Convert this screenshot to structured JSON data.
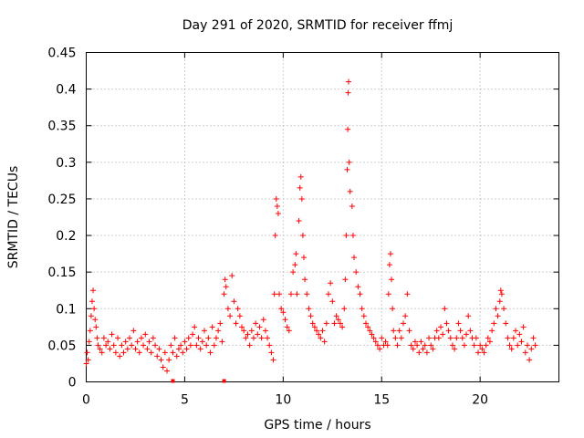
{
  "chart_data": {
    "type": "scatter",
    "title": "Day 291 of 2020, SRMTID for receiver ffmj",
    "xlabel": "GPS time / hours",
    "ylabel": "SRMTID / TECUs",
    "xlim": [
      0,
      24
    ],
    "ylim": [
      0,
      0.45
    ],
    "xticks": [
      0,
      5,
      10,
      15,
      20
    ],
    "xtick_labels": [
      "0",
      "5",
      "10",
      "15",
      "20"
    ],
    "yticks": [
      0,
      0.05,
      0.1,
      0.15,
      0.2,
      0.25,
      0.3,
      0.35,
      0.4,
      0.45
    ],
    "ytick_labels": [
      "0",
      "0.05",
      "0.1",
      "0.15",
      "0.2",
      "0.25",
      "0.3",
      "0.35",
      "0.4",
      "0.45"
    ],
    "grid": true,
    "marker": "+",
    "marker_color": "#ff0000",
    "series": [
      {
        "name": "SRMTID",
        "points": [
          [
            0.0,
            0.025
          ],
          [
            0.05,
            0.04
          ],
          [
            0.1,
            0.03
          ],
          [
            0.15,
            0.055
          ],
          [
            0.2,
            0.07
          ],
          [
            0.25,
            0.09
          ],
          [
            0.3,
            0.11
          ],
          [
            0.35,
            0.125
          ],
          [
            0.4,
            0.1
          ],
          [
            0.45,
            0.085
          ],
          [
            0.5,
            0.075
          ],
          [
            0.55,
            0.06
          ],
          [
            0.6,
            0.05
          ],
          [
            0.7,
            0.045
          ],
          [
            0.8,
            0.04
          ],
          [
            0.9,
            0.06
          ],
          [
            1.0,
            0.05
          ],
          [
            1.1,
            0.055
          ],
          [
            1.2,
            0.045
          ],
          [
            1.3,
            0.065
          ],
          [
            1.4,
            0.05
          ],
          [
            1.5,
            0.04
          ],
          [
            1.6,
            0.06
          ],
          [
            1.7,
            0.035
          ],
          [
            1.8,
            0.05
          ],
          [
            1.9,
            0.04
          ],
          [
            2.0,
            0.055
          ],
          [
            2.1,
            0.045
          ],
          [
            2.2,
            0.06
          ],
          [
            2.3,
            0.05
          ],
          [
            2.4,
            0.07
          ],
          [
            2.5,
            0.045
          ],
          [
            2.6,
            0.055
          ],
          [
            2.7,
            0.04
          ],
          [
            2.8,
            0.06
          ],
          [
            2.9,
            0.05
          ],
          [
            3.0,
            0.065
          ],
          [
            3.1,
            0.045
          ],
          [
            3.2,
            0.055
          ],
          [
            3.3,
            0.04
          ],
          [
            3.4,
            0.06
          ],
          [
            3.5,
            0.05
          ],
          [
            3.6,
            0.035
          ],
          [
            3.7,
            0.045
          ],
          [
            3.8,
            0.03
          ],
          [
            3.9,
            0.02
          ],
          [
            4.0,
            0.04
          ],
          [
            4.1,
            0.015
          ],
          [
            4.2,
            0.03
          ],
          [
            4.3,
            0.05
          ],
          [
            4.4,
            0.04
          ],
          [
            4.5,
            0.06
          ],
          [
            4.6,
            0.035
          ],
          [
            4.7,
            0.045
          ],
          [
            4.8,
            0.05
          ],
          [
            4.9,
            0.04
          ],
          [
            5.0,
            0.055
          ],
          [
            5.1,
            0.045
          ],
          [
            5.2,
            0.06
          ],
          [
            5.3,
            0.05
          ],
          [
            5.4,
            0.065
          ],
          [
            5.5,
            0.075
          ],
          [
            5.6,
            0.05
          ],
          [
            5.7,
            0.06
          ],
          [
            5.8,
            0.045
          ],
          [
            5.9,
            0.055
          ],
          [
            6.0,
            0.07
          ],
          [
            6.1,
            0.05
          ],
          [
            6.2,
            0.06
          ],
          [
            6.3,
            0.04
          ],
          [
            6.4,
            0.075
          ],
          [
            6.5,
            0.05
          ],
          [
            6.6,
            0.06
          ],
          [
            6.7,
            0.07
          ],
          [
            6.8,
            0.08
          ],
          [
            6.9,
            0.055
          ],
          [
            7.0,
            0.12
          ],
          [
            7.05,
            0.14
          ],
          [
            7.1,
            0.13
          ],
          [
            7.2,
            0.1
          ],
          [
            7.3,
            0.09
          ],
          [
            7.4,
            0.145
          ],
          [
            7.5,
            0.11
          ],
          [
            7.6,
            0.08
          ],
          [
            7.7,
            0.1
          ],
          [
            7.8,
            0.09
          ],
          [
            7.9,
            0.075
          ],
          [
            8.0,
            0.07
          ],
          [
            8.1,
            0.06
          ],
          [
            8.2,
            0.065
          ],
          [
            8.3,
            0.05
          ],
          [
            8.4,
            0.07
          ],
          [
            8.5,
            0.06
          ],
          [
            8.6,
            0.08
          ],
          [
            8.7,
            0.065
          ],
          [
            8.8,
            0.075
          ],
          [
            8.9,
            0.06
          ],
          [
            9.0,
            0.085
          ],
          [
            9.1,
            0.07
          ],
          [
            9.2,
            0.06
          ],
          [
            9.3,
            0.05
          ],
          [
            9.4,
            0.04
          ],
          [
            9.5,
            0.03
          ],
          [
            9.55,
            0.12
          ],
          [
            9.6,
            0.2
          ],
          [
            9.65,
            0.25
          ],
          [
            9.7,
            0.24
          ],
          [
            9.75,
            0.23
          ],
          [
            9.8,
            0.12
          ],
          [
            9.9,
            0.1
          ],
          [
            10.0,
            0.095
          ],
          [
            10.1,
            0.085
          ],
          [
            10.2,
            0.075
          ],
          [
            10.3,
            0.07
          ],
          [
            10.4,
            0.12
          ],
          [
            10.5,
            0.15
          ],
          [
            10.6,
            0.16
          ],
          [
            10.65,
            0.175
          ],
          [
            10.7,
            0.12
          ],
          [
            10.8,
            0.22
          ],
          [
            10.85,
            0.265
          ],
          [
            10.9,
            0.28
          ],
          [
            10.95,
            0.25
          ],
          [
            11.0,
            0.2
          ],
          [
            11.05,
            0.17
          ],
          [
            11.1,
            0.14
          ],
          [
            11.2,
            0.12
          ],
          [
            11.3,
            0.1
          ],
          [
            11.4,
            0.09
          ],
          [
            11.5,
            0.08
          ],
          [
            11.6,
            0.075
          ],
          [
            11.7,
            0.07
          ],
          [
            11.8,
            0.065
          ],
          [
            11.9,
            0.06
          ],
          [
            12.0,
            0.07
          ],
          [
            12.1,
            0.055
          ],
          [
            12.2,
            0.08
          ],
          [
            12.3,
            0.12
          ],
          [
            12.4,
            0.135
          ],
          [
            12.5,
            0.11
          ],
          [
            12.6,
            0.08
          ],
          [
            12.7,
            0.09
          ],
          [
            12.8,
            0.085
          ],
          [
            12.9,
            0.08
          ],
          [
            13.0,
            0.075
          ],
          [
            13.1,
            0.1
          ],
          [
            13.15,
            0.14
          ],
          [
            13.2,
            0.2
          ],
          [
            13.25,
            0.29
          ],
          [
            13.28,
            0.345
          ],
          [
            13.3,
            0.395
          ],
          [
            13.32,
            0.41
          ],
          [
            13.35,
            0.3
          ],
          [
            13.4,
            0.26
          ],
          [
            13.5,
            0.24
          ],
          [
            13.55,
            0.2
          ],
          [
            13.6,
            0.17
          ],
          [
            13.7,
            0.15
          ],
          [
            13.8,
            0.13
          ],
          [
            13.9,
            0.12
          ],
          [
            14.0,
            0.1
          ],
          [
            14.1,
            0.09
          ],
          [
            14.2,
            0.08
          ],
          [
            14.3,
            0.075
          ],
          [
            14.4,
            0.07
          ],
          [
            14.5,
            0.065
          ],
          [
            14.6,
            0.06
          ],
          [
            14.7,
            0.055
          ],
          [
            14.8,
            0.05
          ],
          [
            14.9,
            0.045
          ],
          [
            15.0,
            0.06
          ],
          [
            15.1,
            0.05
          ],
          [
            15.2,
            0.055
          ],
          [
            15.3,
            0.05
          ],
          [
            15.35,
            0.12
          ],
          [
            15.4,
            0.16
          ],
          [
            15.45,
            0.175
          ],
          [
            15.5,
            0.14
          ],
          [
            15.55,
            0.1
          ],
          [
            15.6,
            0.07
          ],
          [
            15.7,
            0.06
          ],
          [
            15.8,
            0.05
          ],
          [
            15.9,
            0.07
          ],
          [
            16.0,
            0.06
          ],
          [
            16.1,
            0.08
          ],
          [
            16.2,
            0.09
          ],
          [
            16.3,
            0.12
          ],
          [
            16.4,
            0.07
          ],
          [
            16.5,
            0.05
          ],
          [
            16.6,
            0.045
          ],
          [
            16.7,
            0.055
          ],
          [
            16.8,
            0.05
          ],
          [
            16.9,
            0.04
          ],
          [
            17.0,
            0.055
          ],
          [
            17.1,
            0.045
          ],
          [
            17.2,
            0.05
          ],
          [
            17.3,
            0.04
          ],
          [
            17.4,
            0.06
          ],
          [
            17.5,
            0.05
          ],
          [
            17.6,
            0.045
          ],
          [
            17.7,
            0.06
          ],
          [
            17.8,
            0.07
          ],
          [
            17.9,
            0.06
          ],
          [
            18.0,
            0.075
          ],
          [
            18.1,
            0.065
          ],
          [
            18.2,
            0.1
          ],
          [
            18.3,
            0.08
          ],
          [
            18.4,
            0.07
          ],
          [
            18.5,
            0.06
          ],
          [
            18.6,
            0.05
          ],
          [
            18.7,
            0.045
          ],
          [
            18.8,
            0.06
          ],
          [
            18.9,
            0.08
          ],
          [
            19.0,
            0.07
          ],
          [
            19.1,
            0.06
          ],
          [
            19.2,
            0.05
          ],
          [
            19.3,
            0.065
          ],
          [
            19.4,
            0.09
          ],
          [
            19.5,
            0.07
          ],
          [
            19.6,
            0.06
          ],
          [
            19.7,
            0.05
          ],
          [
            19.8,
            0.06
          ],
          [
            19.9,
            0.04
          ],
          [
            20.0,
            0.05
          ],
          [
            20.1,
            0.045
          ],
          [
            20.2,
            0.04
          ],
          [
            20.3,
            0.05
          ],
          [
            20.4,
            0.06
          ],
          [
            20.5,
            0.055
          ],
          [
            20.6,
            0.07
          ],
          [
            20.7,
            0.08
          ],
          [
            20.8,
            0.1
          ],
          [
            20.9,
            0.09
          ],
          [
            21.0,
            0.11
          ],
          [
            21.05,
            0.125
          ],
          [
            21.1,
            0.12
          ],
          [
            21.2,
            0.1
          ],
          [
            21.3,
            0.08
          ],
          [
            21.4,
            0.06
          ],
          [
            21.5,
            0.05
          ],
          [
            21.6,
            0.045
          ],
          [
            21.7,
            0.06
          ],
          [
            21.8,
            0.07
          ],
          [
            21.9,
            0.05
          ],
          [
            22.0,
            0.065
          ],
          [
            22.1,
            0.055
          ],
          [
            22.2,
            0.075
          ],
          [
            22.3,
            0.04
          ],
          [
            22.4,
            0.05
          ],
          [
            22.5,
            0.03
          ],
          [
            22.6,
            0.045
          ],
          [
            22.7,
            0.06
          ],
          [
            22.8,
            0.05
          ]
        ]
      }
    ],
    "gap_markers": [
      4.4,
      7.0
    ]
  }
}
